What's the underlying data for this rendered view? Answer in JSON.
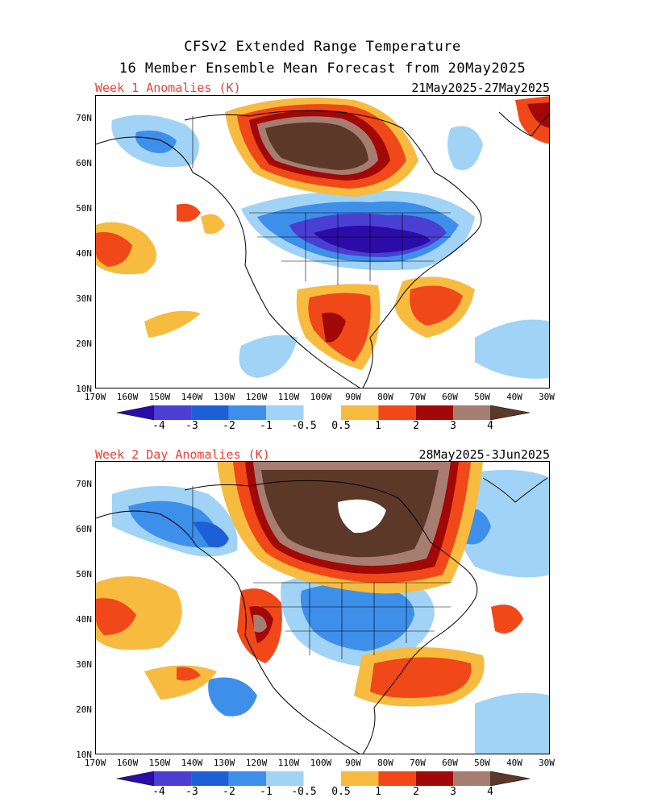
{
  "title_line1": "CFSv2 Extended Range Temperature",
  "title_line2": "16 Member Ensemble Mean Forecast from 20May2025",
  "panels": [
    {
      "label": "Week 1 Anomalies (K)",
      "dates": "21May2025-27May2025"
    },
    {
      "label": "Week 2 Day Anomalies (K)",
      "dates": "28May2025-3Jun2025"
    }
  ],
  "lat_labels": [
    "70N",
    "60N",
    "50N",
    "40N",
    "30N",
    "20N",
    "10N"
  ],
  "lon_labels": [
    "170W",
    "160W",
    "150W",
    "140W",
    "130W",
    "120W",
    "110W",
    "100W",
    "90W",
    "80W",
    "70W",
    "60W",
    "50W",
    "40W",
    "30W"
  ],
  "colorbar": {
    "labels": [
      "-4",
      "-3",
      "-2",
      "-1",
      "-0.5",
      "0.5",
      "1",
      "2",
      "3",
      "4"
    ],
    "colors": [
      "#2c0ca8",
      "#4a3fd2",
      "#1c5fd6",
      "#3d8fea",
      "#a0d3f5",
      "#ffffff",
      "#f7bb40",
      "#f04818",
      "#a10808",
      "#a67d70",
      "#5c3828"
    ]
  }
}
